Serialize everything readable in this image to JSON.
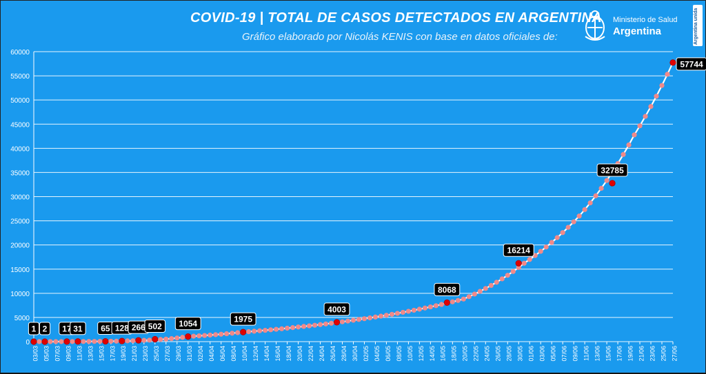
{
  "header": {
    "title": "COVID-19  |  TOTAL DE CASOS DETECTADOS EN ARGENTINA",
    "subtitle": "Gráfico elaborado por Nicolás KENIS con base en datos oficiales de:",
    "logo_line1": "Ministerio de Salud",
    "logo_line2": "Argentina",
    "badge_text": "Argentina unida"
  },
  "colors": {
    "background": "#1a9aee",
    "line": "#ffffff",
    "point": "#f08a8a",
    "highlight": "#e00000",
    "label_bg": "#000000",
    "grid": "#ffffff"
  },
  "chart_data": {
    "type": "line",
    "title": "COVID-19 | TOTAL DE CASOS DETECTADOS EN ARGENTINA",
    "xlabel": "",
    "ylabel": "",
    "ylim": [
      0,
      60000
    ],
    "yticks": [
      0,
      5000,
      10000,
      15000,
      20000,
      25000,
      30000,
      35000,
      40000,
      45000,
      50000,
      55000,
      60000
    ],
    "ytick_labels": [
      "0",
      "5000",
      "10000",
      "15000",
      "20000",
      "25000",
      "30000",
      "35000",
      "40000",
      "45000",
      "50000",
      "55000",
      "60000"
    ],
    "grid": true,
    "x_start": "2020-03-03",
    "x_end": "2020-06-27",
    "xtick_labels": [
      "03/03",
      "05/03",
      "07/03",
      "09/03",
      "11/03",
      "13/03",
      "15/03",
      "17/03",
      "19/03",
      "21/03",
      "23/03",
      "25/03",
      "27/03",
      "29/03",
      "31/03",
      "02/04",
      "04/04",
      "06/04",
      "08/04",
      "10/04",
      "12/04",
      "14/04",
      "16/04",
      "18/04",
      "20/04",
      "22/04",
      "24/04",
      "26/04",
      "28/04",
      "30/04",
      "02/05",
      "04/05",
      "06/05",
      "08/05",
      "10/05",
      "12/05",
      "14/05",
      "16/05",
      "18/05",
      "20/05",
      "22/05",
      "24/05",
      "26/05",
      "28/05",
      "30/05",
      "01/06",
      "03/06",
      "05/06",
      "07/06",
      "09/06",
      "11/06",
      "13/06",
      "15/06",
      "17/06",
      "19/06",
      "21/06",
      "23/06",
      "25/06",
      "27/06"
    ],
    "series": [
      {
        "x": [
          "03/03",
          "10/03",
          "20/03",
          "31/03",
          "10/04",
          "20/04",
          "30/04",
          "10/05",
          "20/05",
          "31/05",
          "10/06",
          "20/06",
          "27/06"
        ],
        "values": [
          1,
          17,
          158,
          1054,
          1975,
          3031,
          4428,
          6278,
          8809,
          16214,
          25987,
          42785,
          57744
        ]
      }
    ],
    "annotations": [
      {
        "x": "03/03",
        "y": 1,
        "label": "1"
      },
      {
        "x": "05/03",
        "y": 2,
        "label": "2"
      },
      {
        "x": "09/03",
        "y": 17,
        "label": "17"
      },
      {
        "x": "11/03",
        "y": 31,
        "label": "31"
      },
      {
        "x": "16/03",
        "y": 65,
        "label": "65"
      },
      {
        "x": "19/03",
        "y": 128,
        "label": "128"
      },
      {
        "x": "22/03",
        "y": 266,
        "label": "266"
      },
      {
        "x": "25/03",
        "y": 502,
        "label": "502"
      },
      {
        "x": "31/03",
        "y": 1054,
        "label": "1054"
      },
      {
        "x": "10/04",
        "y": 1975,
        "label": "1975"
      },
      {
        "x": "27/04",
        "y": 4003,
        "label": "4003"
      },
      {
        "x": "17/05",
        "y": 8068,
        "label": "8068"
      },
      {
        "x": "30/05",
        "y": 16214,
        "label": "16214"
      },
      {
        "x": "16/06",
        "y": 32785,
        "label": "32785"
      },
      {
        "x": "27/06",
        "y": 57744,
        "label": "57744"
      }
    ]
  }
}
